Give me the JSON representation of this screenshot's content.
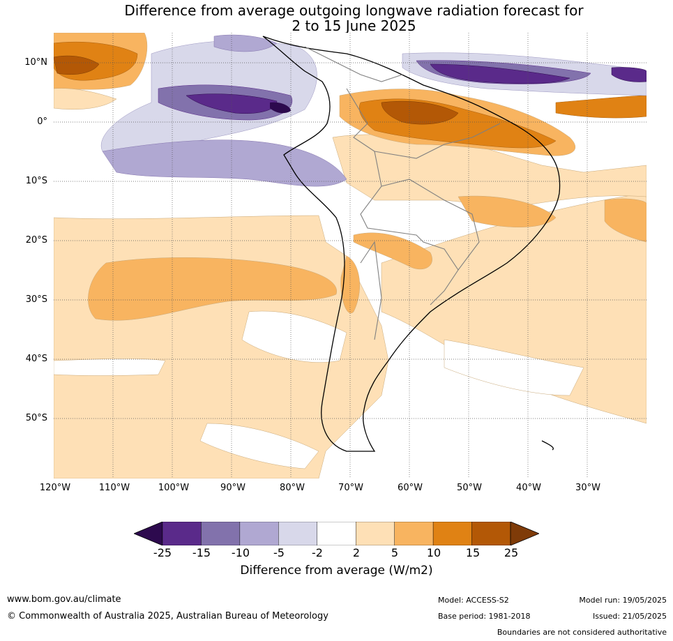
{
  "title": {
    "line1": "Difference from average outgoing longwave radiation forecast for",
    "line2": "2 to 15 June 2025"
  },
  "map": {
    "lat_labels": [
      "10°N",
      "0°",
      "10°S",
      "20°S",
      "30°S",
      "40°S",
      "50°S"
    ],
    "lon_labels": [
      "120°W",
      "110°W",
      "100°W",
      "90°W",
      "80°W",
      "70°W",
      "60°W",
      "50°W",
      "40°W",
      "30°W"
    ],
    "extent": {
      "lon_min": -120,
      "lon_max": -20,
      "lat_min": -60,
      "lat_max": 15
    },
    "gridlines": true
  },
  "colorbar": {
    "ticks": [
      "-25",
      "-15",
      "-10",
      "-5",
      "-2",
      "2",
      "5",
      "10",
      "15",
      "25"
    ],
    "colors": [
      "#2d0a4e",
      "#5a2a8a",
      "#8272ac",
      "#b0a8d2",
      "#d8d8ea",
      "#ffffff",
      "#fee0b6",
      "#f8b460",
      "#e08214",
      "#b35806",
      "#7f3b08"
    ],
    "label": "Difference from average (W/m2)"
  },
  "footer": {
    "url": "www.bom.gov.au/climate",
    "copyright": "© Commonwealth of Australia 2025, Australian Bureau of Meteorology",
    "model": "Model: ACCESS-S2",
    "base_period": "Base period: 1981-2018",
    "model_run": "Model run: 19/05/2025",
    "issued": "Issued: 21/05/2025",
    "disclaimer": "Boundaries are not considered authoritative"
  }
}
